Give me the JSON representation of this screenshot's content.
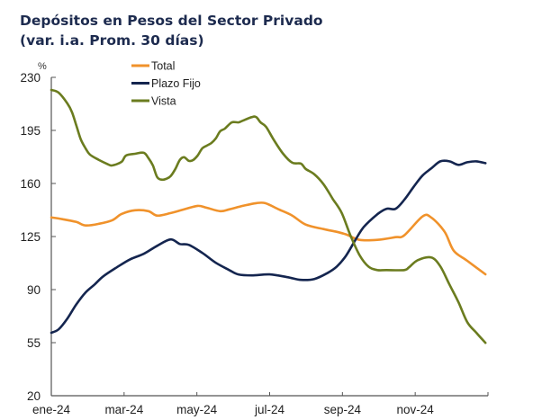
{
  "chart_data": {
    "type": "line",
    "title": "Depósitos en Pesos del Sector Privado",
    "subtitle": "(var. i.a. Prom. 30 días)",
    "ylabel": "%",
    "xlabel": "",
    "ylim": [
      20,
      230
    ],
    "yticks": [
      20,
      55,
      90,
      125,
      160,
      195,
      230
    ],
    "ytick_labels": [
      "20",
      "55",
      "90",
      "125",
      "160",
      "195",
      "230"
    ],
    "xlim_months": [
      0,
      12
    ],
    "xticks_months": [
      0,
      2,
      4,
      6,
      8,
      10,
      12
    ],
    "xtick_labels": [
      "ene-24",
      "mar-24",
      "may-24",
      "jul-24",
      "sep-24",
      "nov-24",
      ""
    ],
    "grid": false,
    "legend_position": "top-center",
    "series": [
      {
        "name": "Total",
        "color": "#F0922B",
        "x_months": [
          0.0,
          0.32,
          0.69,
          0.94,
          1.31,
          1.68,
          1.93,
          2.3,
          2.67,
          2.91,
          3.28,
          3.65,
          4.02,
          4.27,
          4.64,
          4.89,
          5.26,
          5.63,
          5.88,
          6.25,
          6.62,
          6.99,
          7.48,
          7.85,
          8.1,
          8.47,
          8.96,
          9.46,
          9.7,
          10.2,
          10.44,
          10.81,
          11.06,
          11.43,
          11.93
        ],
        "values": [
          137.6,
          136.4,
          134.6,
          132.3,
          133.4,
          135.8,
          139.9,
          142.3,
          141.7,
          138.8,
          140.5,
          142.9,
          145.2,
          144.0,
          141.7,
          142.9,
          145.2,
          147.0,
          147.0,
          142.9,
          138.8,
          132.9,
          129.9,
          128.1,
          126.4,
          122.8,
          122.8,
          124.6,
          125.8,
          138.2,
          137.6,
          128.1,
          115.6,
          109.0,
          100.1
        ]
      },
      {
        "name": "Plazo Fijo",
        "color": "#14254F",
        "x_months": [
          0.0,
          0.2,
          0.44,
          0.69,
          0.94,
          1.19,
          1.43,
          1.8,
          2.17,
          2.54,
          2.91,
          3.28,
          3.53,
          3.78,
          4.15,
          4.52,
          4.89,
          5.14,
          5.51,
          6.0,
          6.49,
          6.86,
          7.23,
          7.6,
          7.85,
          8.1,
          8.35,
          8.59,
          8.96,
          9.21,
          9.46,
          9.7,
          9.95,
          10.2,
          10.44,
          10.69,
          10.94,
          11.19,
          11.43,
          11.68,
          11.93
        ],
        "values": [
          61.5,
          63.8,
          70.9,
          80.4,
          88.1,
          93.4,
          98.8,
          104.7,
          110.0,
          113.6,
          118.9,
          123.1,
          120.1,
          119.5,
          114.2,
          107.7,
          102.9,
          100.0,
          99.4,
          100.0,
          98.2,
          96.4,
          97.0,
          101.1,
          105.3,
          112.4,
          122.5,
          131.4,
          139.7,
          143.3,
          143.3,
          149.2,
          157.5,
          165.2,
          169.9,
          174.6,
          174.6,
          172.3,
          174.0,
          174.6,
          173.4
        ]
      },
      {
        "name": "Vista",
        "color": "#6B7C1F",
        "x_months": [
          0.0,
          0.2,
          0.44,
          0.57,
          0.69,
          0.81,
          0.94,
          1.06,
          1.31,
          1.56,
          1.68,
          1.93,
          2.05,
          2.3,
          2.54,
          2.67,
          2.79,
          2.91,
          3.04,
          3.16,
          3.28,
          3.41,
          3.53,
          3.65,
          3.78,
          3.9,
          4.02,
          4.15,
          4.27,
          4.4,
          4.52,
          4.64,
          4.77,
          4.96,
          5.14,
          5.26,
          5.51,
          5.63,
          5.75,
          5.9,
          6.12,
          6.37,
          6.62,
          6.86,
          6.99,
          7.23,
          7.48,
          7.73,
          7.98,
          8.22,
          8.47,
          8.72,
          8.96,
          9.21,
          9.7,
          9.83,
          10.07,
          10.44,
          10.69,
          10.94,
          11.19,
          11.43,
          11.68,
          11.93
        ],
        "values": [
          221.7,
          219.9,
          212.8,
          206.9,
          198.0,
          189.1,
          183.2,
          179.1,
          175.5,
          172.6,
          171.9,
          174.3,
          178.4,
          179.6,
          180.2,
          176.7,
          171.9,
          164.2,
          162.5,
          163.1,
          164.9,
          169.6,
          175.5,
          177.3,
          174.9,
          175.5,
          178.4,
          183.2,
          184.9,
          186.7,
          189.7,
          194.4,
          196.2,
          200.3,
          200.3,
          201.4,
          203.8,
          203.8,
          200.3,
          197.4,
          188.5,
          179.6,
          173.7,
          173.1,
          169.6,
          166.0,
          159.5,
          150.0,
          140.6,
          125.8,
          112.8,
          105.1,
          102.9,
          102.9,
          102.9,
          104.7,
          109.4,
          111.2,
          105.3,
          93.4,
          81.6,
          68.5,
          61.5,
          54.9
        ]
      }
    ]
  }
}
